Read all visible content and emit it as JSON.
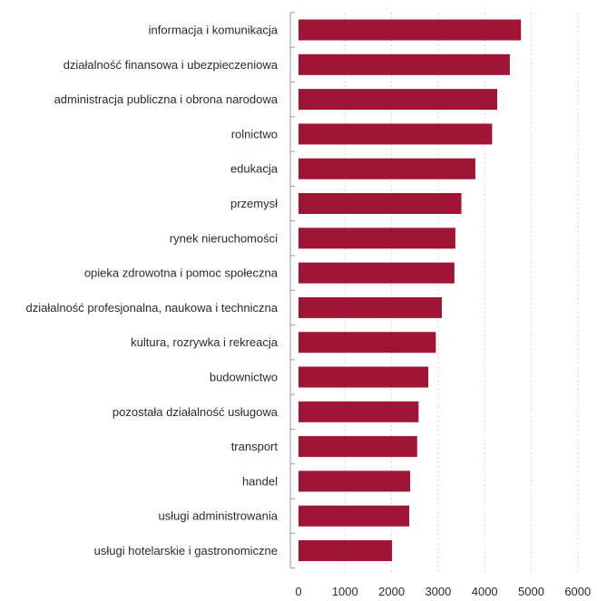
{
  "chart_data": {
    "type": "bar",
    "orientation": "horizontal",
    "categories": [
      "informacja i komunikacja",
      "działalność finansowa i ubezpieczeniowa",
      "administracja publiczna i obrona narodowa",
      "rolnictwo",
      "edukacja",
      "przemysł",
      "rynek nieruchomości",
      "opieka zdrowotna i pomoc społeczna",
      "działalność profesjonalna, naukowa i techniczna",
      "kultura, rozrywka i rekreacja",
      "budownictwo",
      "pozostała działalność usługowa",
      "transport",
      "handel",
      "usługi administrowania",
      "usługi hotelarskie i gastronomiczne"
    ],
    "values": [
      4780,
      4540,
      4270,
      4160,
      3800,
      3500,
      3370,
      3350,
      3080,
      2950,
      2790,
      2580,
      2550,
      2400,
      2380,
      2010
    ],
    "xlim": [
      0,
      6000
    ],
    "xticks": [
      0,
      1000,
      2000,
      3000,
      4000,
      5000,
      6000
    ],
    "grid": true,
    "bar_color": "#9e1535",
    "title": "",
    "xlabel": "",
    "ylabel": ""
  }
}
